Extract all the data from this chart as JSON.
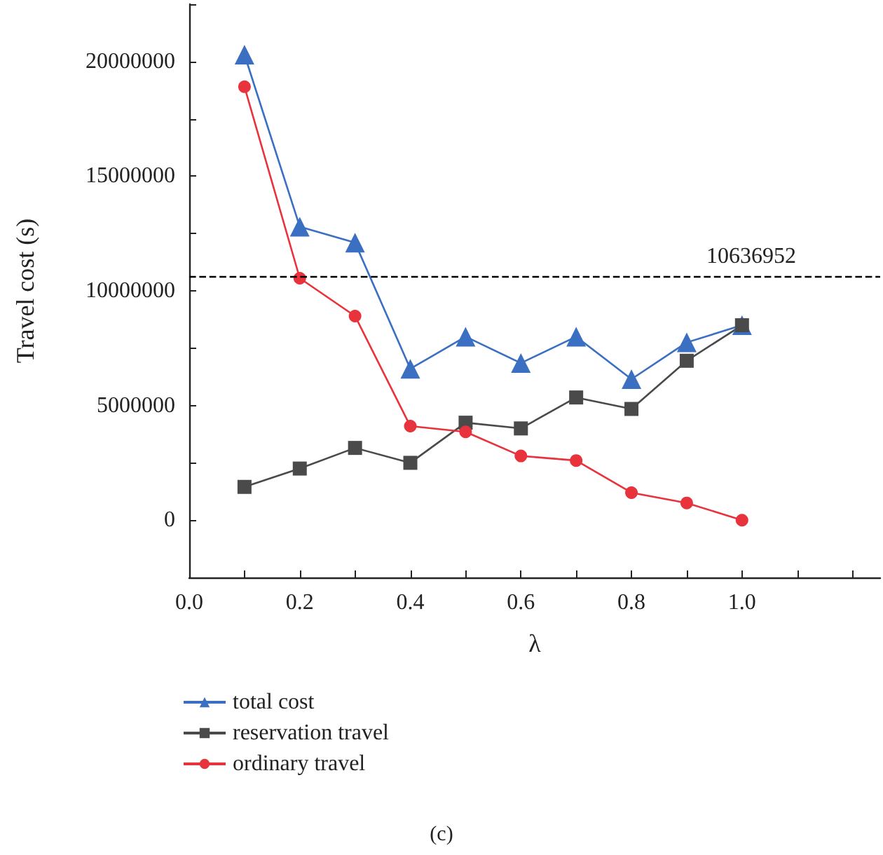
{
  "chart_data": {
    "type": "line",
    "x": [
      0.1,
      0.2,
      0.3,
      0.4,
      0.5,
      0.6,
      0.7,
      0.8,
      0.9,
      1.0
    ],
    "series": [
      {
        "name": "total cost",
        "color": "#3a6fc2",
        "marker": "triangle",
        "values": [
          20300000,
          12800000,
          12100000,
          6600000,
          8000000,
          6850000,
          8000000,
          6150000,
          7750000,
          8500000
        ]
      },
      {
        "name": "reservation travel",
        "color": "#4a4a4a",
        "marker": "square",
        "values": [
          1450000,
          2250000,
          3150000,
          2500000,
          4250000,
          4000000,
          5350000,
          4850000,
          6950000,
          8500000
        ]
      },
      {
        "name": "ordinary travel",
        "color": "#e8323c",
        "marker": "circle",
        "values": [
          18900000,
          10550000,
          8900000,
          4100000,
          3850000,
          2800000,
          2600000,
          1200000,
          750000,
          0
        ]
      }
    ],
    "xlabel": "λ",
    "ylabel": "Travel cost (s)",
    "xlim": [
      0,
      1.25
    ],
    "xticks": [
      {
        "value": 0,
        "label": "0.0"
      },
      {
        "value": 0.1,
        "label": null
      },
      {
        "value": 0.2,
        "label": "0.2"
      },
      {
        "value": 0.3,
        "label": null
      },
      {
        "value": 0.4,
        "label": "0.4"
      },
      {
        "value": 0.5,
        "label": null
      },
      {
        "value": 0.6,
        "label": "0.6"
      },
      {
        "value": 0.7,
        "label": null
      },
      {
        "value": 0.8,
        "label": "0.8"
      },
      {
        "value": 0.9,
        "label": null
      },
      {
        "value": 1.0,
        "label": "1.0"
      },
      {
        "value": 1.1,
        "label": null
      },
      {
        "value": 1.2,
        "label": null
      }
    ],
    "ylim": [
      -2500000,
      22500000
    ],
    "yticks": [
      {
        "value": -2500000,
        "label": null
      },
      0,
      {
        "value": 2500000,
        "label": null
      },
      5000000,
      {
        "value": 7500000,
        "label": null
      },
      10000000,
      {
        "value": 12500000,
        "label": null
      },
      15000000,
      {
        "value": 17500000,
        "label": null
      },
      20000000,
      {
        "value": 22500000,
        "label": null
      }
    ],
    "ref_lines": [
      {
        "axis": "y",
        "value": 10636952,
        "label": "10636952",
        "color": "#000000",
        "line_style": "dashed"
      }
    ],
    "annotations": [
      "(c)"
    ],
    "legend": "bottom",
    "grid": false,
    "line_style": "solid"
  }
}
